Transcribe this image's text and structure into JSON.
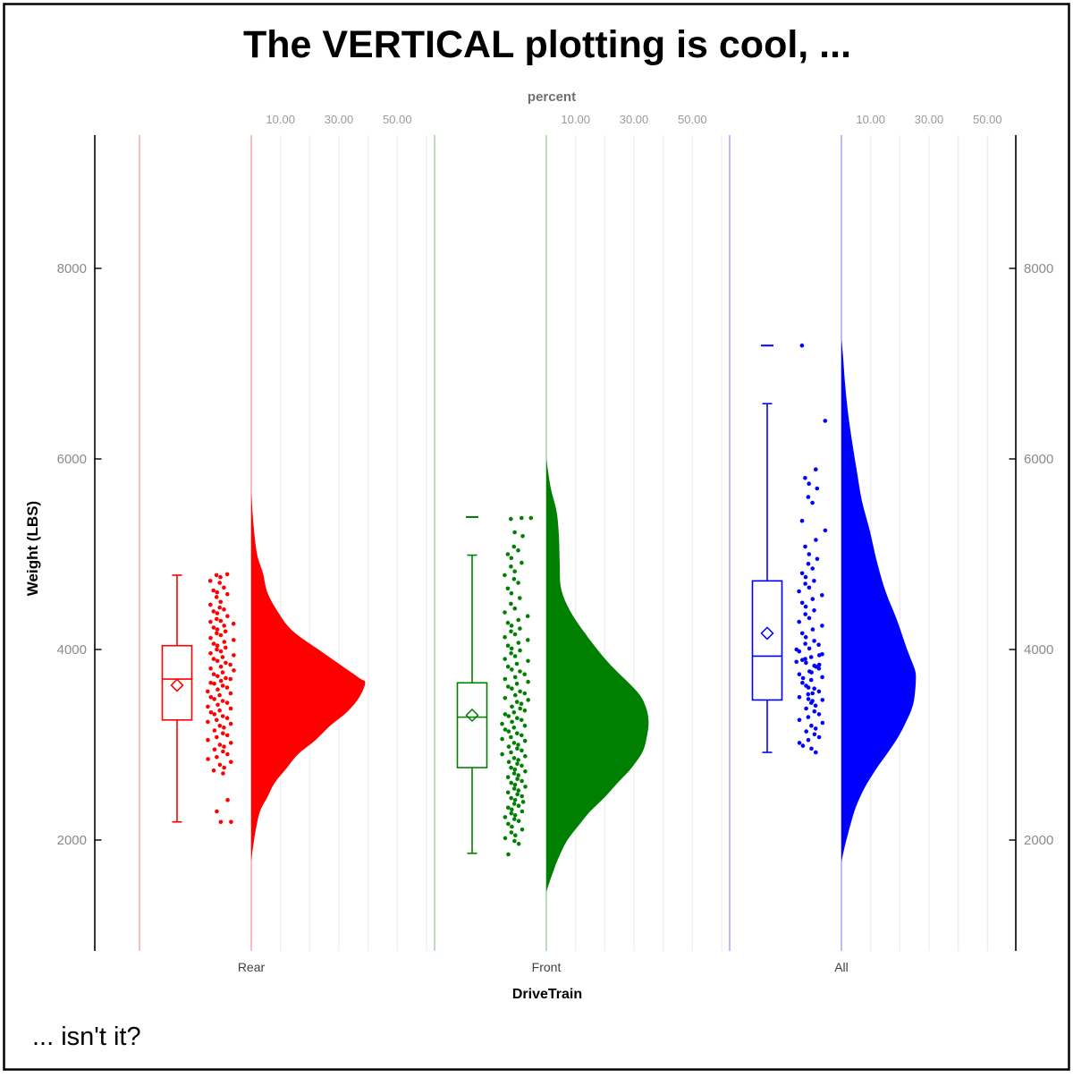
{
  "title": "The VERTICAL plotting is cool, ...",
  "footnote": "... isn't it?",
  "top_axis": {
    "label": "percent",
    "tick_values": [
      10,
      30,
      50
    ],
    "tick_labels": [
      "10.00",
      "30.00",
      "50.00"
    ],
    "gridline_values": [
      10,
      20,
      30,
      40,
      50,
      60
    ]
  },
  "y_axis": {
    "label": "Weight (LBS)",
    "tick_values": [
      2000,
      4000,
      6000,
      8000
    ],
    "tick_labels": [
      "2000",
      "4000",
      "6000",
      "8000"
    ]
  },
  "x_axis": {
    "label": "DriveTrain",
    "categories": [
      "Rear",
      "Front",
      "All"
    ]
  },
  "colors": {
    "rear": "#ff0000",
    "front": "#008000",
    "all": "#0000ff",
    "grid": "#ececec",
    "axis": "#000000",
    "tick_text": "#8b8b8b",
    "category_text": "#3f3f3f",
    "background": "#ffffff"
  },
  "chart_data": {
    "type": "raincloud",
    "orientation": "vertical",
    "description": "Half-violin (density as percent) + box plot with mean diamond + jittered points, per DriveTrain group",
    "percent_axis": {
      "title": "percent",
      "labeled_ticks": [
        10,
        30,
        50
      ],
      "gridlines": [
        10,
        20,
        30,
        40,
        50,
        60
      ]
    },
    "weight_axis": {
      "title": "Weight (LBS)",
      "ticks": [
        2000,
        4000,
        6000,
        8000
      ]
    },
    "groups": [
      {
        "name": "Rear",
        "color": "#ff0000",
        "box": {
          "whisker_low": 2190,
          "q1": 3260,
          "median": 3690,
          "mean": 3625,
          "q3": 4040,
          "whisker_high": 4780
        },
        "outliers": [],
        "violin_profile": [
          [
            5650,
            0
          ],
          [
            5300,
            0.8
          ],
          [
            5000,
            2
          ],
          [
            4800,
            4
          ],
          [
            4600,
            5.5
          ],
          [
            4400,
            9
          ],
          [
            4200,
            14
          ],
          [
            4000,
            23
          ],
          [
            3850,
            30
          ],
          [
            3700,
            37
          ],
          [
            3650,
            39
          ],
          [
            3500,
            37
          ],
          [
            3350,
            33
          ],
          [
            3200,
            27
          ],
          [
            3050,
            22
          ],
          [
            2900,
            16
          ],
          [
            2750,
            12
          ],
          [
            2600,
            8
          ],
          [
            2450,
            5.5
          ],
          [
            2300,
            3
          ],
          [
            2100,
            1.5
          ],
          [
            1900,
            0.5
          ],
          [
            1780,
            0
          ]
        ],
        "points": [
          4790,
          4780,
          4760,
          4720,
          4700,
          4650,
          4620,
          4600,
          4580,
          4550,
          4500,
          4470,
          4440,
          4420,
          4400,
          4380,
          4350,
          4320,
          4300,
          4290,
          4270,
          4250,
          4230,
          4210,
          4190,
          4170,
          4150,
          4120,
          4100,
          4080,
          4060,
          4040,
          4020,
          4000,
          3980,
          3960,
          3940,
          3920,
          3900,
          3880,
          3860,
          3840,
          3820,
          3800,
          3780,
          3760,
          3740,
          3720,
          3700,
          3690,
          3670,
          3650,
          3640,
          3620,
          3600,
          3580,
          3560,
          3540,
          3520,
          3500,
          3480,
          3460,
          3440,
          3420,
          3400,
          3380,
          3360,
          3340,
          3320,
          3300,
          3280,
          3260,
          3240,
          3220,
          3200,
          3180,
          3150,
          3120,
          3100,
          3080,
          3050,
          3020,
          3000,
          2980,
          2950,
          2930,
          2900,
          2870,
          2850,
          2820,
          2790,
          2760,
          2730,
          2700,
          2420,
          2300,
          2190,
          2190
        ]
      },
      {
        "name": "Front",
        "color": "#008000",
        "box": {
          "whisker_low": 1860,
          "q1": 2760,
          "median": 3290,
          "mean": 3310,
          "q3": 3650,
          "whisker_high": 4990
        },
        "outliers": [
          5390
        ],
        "violin_profile": [
          [
            6000,
            0
          ],
          [
            5700,
            1.5
          ],
          [
            5450,
            3.5
          ],
          [
            5200,
            4.3
          ],
          [
            4900,
            4.6
          ],
          [
            4650,
            5
          ],
          [
            4430,
            7.7
          ],
          [
            4180,
            13
          ],
          [
            3870,
            21
          ],
          [
            3560,
            31
          ],
          [
            3400,
            34
          ],
          [
            3250,
            35
          ],
          [
            3100,
            34.5
          ],
          [
            2930,
            33
          ],
          [
            2750,
            29
          ],
          [
            2620,
            25
          ],
          [
            2450,
            20
          ],
          [
            2300,
            15
          ],
          [
            2150,
            11
          ],
          [
            1990,
            7
          ],
          [
            1800,
            4
          ],
          [
            1680,
            2.5
          ],
          [
            1550,
            1
          ],
          [
            1455,
            0
          ]
        ],
        "points": [
          5380,
          5380,
          5370,
          5230,
          5190,
          5080,
          5040,
          5000,
          4960,
          4910,
          4870,
          4820,
          4780,
          4740,
          4700,
          4640,
          4590,
          4540,
          4480,
          4430,
          4390,
          4350,
          4310,
          4280,
          4250,
          4220,
          4190,
          4160,
          4130,
          4100,
          4070,
          4040,
          4010,
          3990,
          3960,
          3930,
          3900,
          3880,
          3850,
          3820,
          3790,
          3770,
          3740,
          3710,
          3690,
          3660,
          3640,
          3610,
          3590,
          3560,
          3540,
          3520,
          3490,
          3470,
          3450,
          3430,
          3400,
          3380,
          3360,
          3340,
          3320,
          3300,
          3280,
          3260,
          3240,
          3220,
          3200,
          3180,
          3160,
          3140,
          3120,
          3100,
          3080,
          3060,
          3040,
          3020,
          3000,
          2980,
          2960,
          2940,
          2920,
          2900,
          2880,
          2860,
          2840,
          2820,
          2800,
          2780,
          2760,
          2740,
          2720,
          2700,
          2680,
          2660,
          2640,
          2620,
          2600,
          2580,
          2560,
          2540,
          2520,
          2500,
          2480,
          2460,
          2440,
          2420,
          2400,
          2380,
          2360,
          2340,
          2320,
          2300,
          2280,
          2260,
          2240,
          2220,
          2200,
          2170,
          2140,
          2110,
          2080,
          2050,
          2020,
          1990,
          1960,
          1850
        ]
      },
      {
        "name": "All",
        "color": "#0000ff",
        "box": {
          "whisker_low": 2920,
          "q1": 3470,
          "median": 3930,
          "mean": 4170,
          "q3": 4720,
          "whisker_high": 6580
        },
        "outliers": [
          7190
        ],
        "violin_profile": [
          [
            7250,
            0
          ],
          [
            7100,
            0.5
          ],
          [
            6810,
            1.2
          ],
          [
            6500,
            2.2
          ],
          [
            6190,
            3.6
          ],
          [
            5870,
            5.3
          ],
          [
            5560,
            7
          ],
          [
            5250,
            9.7
          ],
          [
            4940,
            12
          ],
          [
            4620,
            15
          ],
          [
            4310,
            19
          ],
          [
            4000,
            22.5
          ],
          [
            3800,
            25
          ],
          [
            3700,
            25.5
          ],
          [
            3500,
            25
          ],
          [
            3370,
            24
          ],
          [
            3200,
            21.5
          ],
          [
            3060,
            19
          ],
          [
            2900,
            15.5
          ],
          [
            2750,
            12
          ],
          [
            2550,
            8
          ],
          [
            2350,
            5
          ],
          [
            2150,
            3
          ],
          [
            1950,
            1.3
          ],
          [
            1775,
            0
          ]
        ],
        "points": [
          7190,
          6400,
          5890,
          5800,
          5740,
          5690,
          5600,
          5540,
          5350,
          5250,
          5150,
          5080,
          5000,
          4950,
          4900,
          4850,
          4800,
          4760,
          4720,
          4690,
          4650,
          4610,
          4570,
          4530,
          4490,
          4450,
          4410,
          4370,
          4330,
          4290,
          4250,
          4210,
          4170,
          4130,
          4090,
          4050,
          4010,
          3980,
          3950,
          3920,
          3890,
          3860,
          3830,
          3800,
          3770,
          3740,
          3710,
          3680,
          3650,
          3620,
          3590,
          3560,
          3530,
          3500,
          3470,
          3440,
          3410,
          3380,
          3350,
          3320,
          3290,
          3260,
          3230,
          3200,
          3170,
          3140,
          3110,
          3080,
          3050,
          3020,
          2990,
          2960,
          2920,
          3900,
          3870,
          3840,
          3480,
          3460,
          3700,
          3760,
          3820,
          4060,
          4000,
          3940,
          3600,
          3540
        ]
      }
    ]
  }
}
